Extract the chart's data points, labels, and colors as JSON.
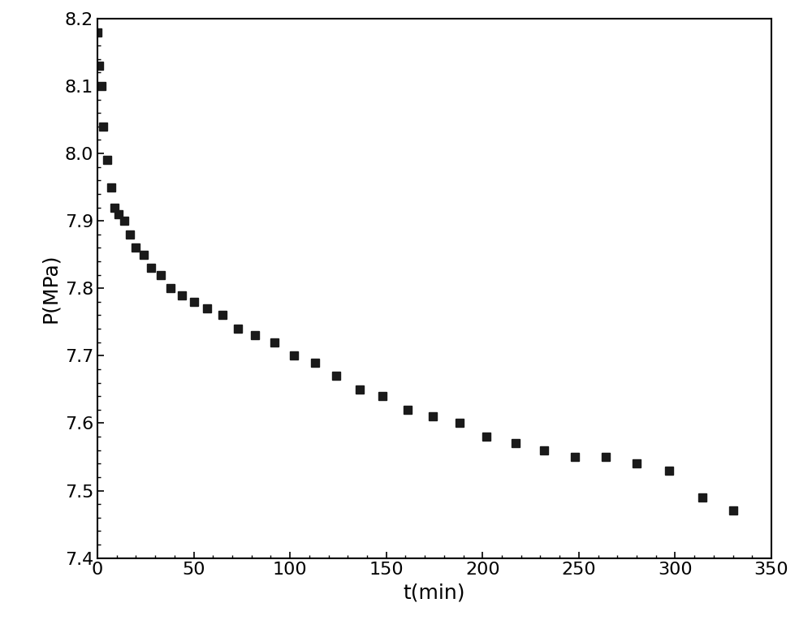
{
  "t_data": [
    0,
    1,
    2,
    3,
    5,
    7,
    9,
    11,
    14,
    17,
    20,
    24,
    28,
    33,
    38,
    44,
    50,
    57,
    65,
    73,
    82,
    92,
    102,
    113,
    124,
    136,
    148,
    161,
    174,
    188,
    202,
    217,
    232,
    248,
    264,
    280,
    297,
    314,
    330
  ],
  "P_data": [
    8.18,
    8.13,
    8.1,
    8.04,
    7.99,
    7.95,
    7.92,
    7.91,
    7.9,
    7.88,
    7.86,
    7.85,
    7.83,
    7.82,
    7.8,
    7.79,
    7.78,
    7.77,
    7.76,
    7.74,
    7.73,
    7.72,
    7.7,
    7.69,
    7.67,
    7.65,
    7.64,
    7.62,
    7.61,
    7.6,
    7.58,
    7.57,
    7.56,
    7.55,
    7.55,
    7.54,
    7.53,
    7.49,
    7.47
  ],
  "xlabel": "t(min)",
  "ylabel": "P(MPa)",
  "xlim": [
    0,
    350
  ],
  "ylim": [
    7.4,
    8.2
  ],
  "xticks": [
    0,
    50,
    100,
    150,
    200,
    250,
    300,
    350
  ],
  "yticks": [
    7.4,
    7.5,
    7.6,
    7.7,
    7.8,
    7.9,
    8.0,
    8.1,
    8.2
  ],
  "marker": "s",
  "marker_color": "#1a1a1a",
  "marker_size": 7,
  "background_color": "#ffffff",
  "spine_color": "#000000",
  "tick_fontsize": 16,
  "label_fontsize": 18,
  "figsize": [
    10.0,
    7.64
  ],
  "dpi": 100
}
